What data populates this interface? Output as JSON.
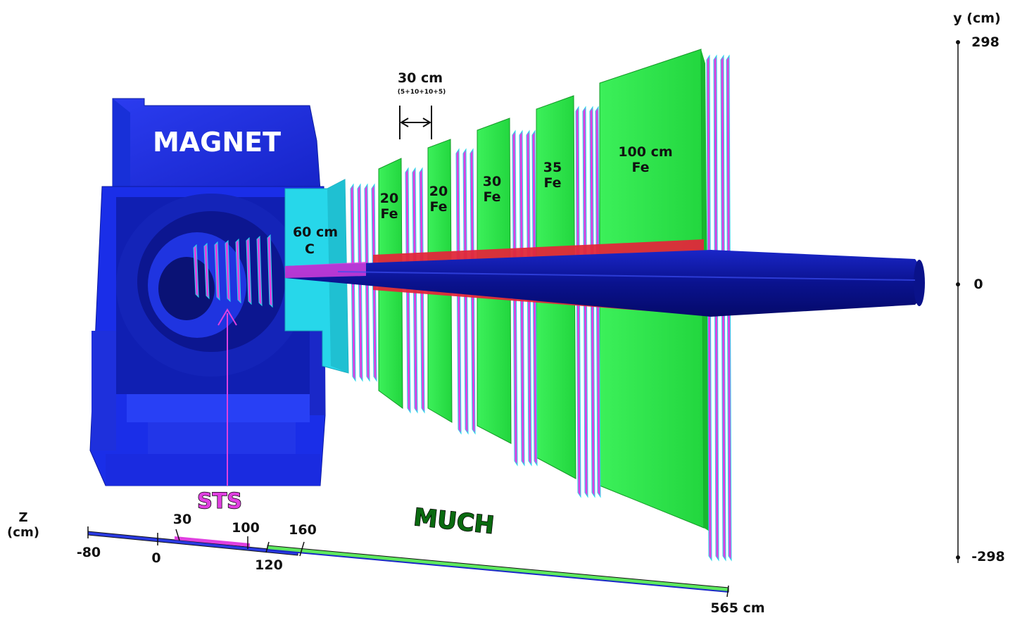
{
  "magnet": {
    "label": "MAGNET"
  },
  "sts": {
    "label": "STS"
  },
  "much": {
    "label": "MUCH"
  },
  "absorbers": [
    {
      "thickness": "60 cm",
      "material": "C"
    },
    {
      "thickness": "20",
      "material": "Fe"
    },
    {
      "thickness": "20",
      "material": "Fe"
    },
    {
      "thickness": "30",
      "material": "Fe"
    },
    {
      "thickness": "35",
      "material": "Fe"
    },
    {
      "thickness": "100 cm",
      "material": "Fe"
    }
  ],
  "gap_annotation": {
    "length": "30 cm",
    "breakdown": "(5+10+10+5)"
  },
  "y_axis": {
    "title": "y (cm)",
    "ticks": [
      "298",
      "0",
      "-298"
    ]
  },
  "z_axis": {
    "title_line1": "Z",
    "title_line2": "(cm)",
    "ticks": [
      "-80",
      "0",
      "30",
      "100",
      "120",
      "160",
      "565 cm"
    ]
  },
  "colors": {
    "magnet": "#1a2fe0",
    "magnet_dark": "#0d1aa0",
    "sts": "#e040e0",
    "absorber": "#2ee84a",
    "carbon_absorber": "#27d7ea",
    "beam_pipe": "#0c14a8",
    "shield": "#e0283a",
    "much_text": "#0a6a10"
  }
}
